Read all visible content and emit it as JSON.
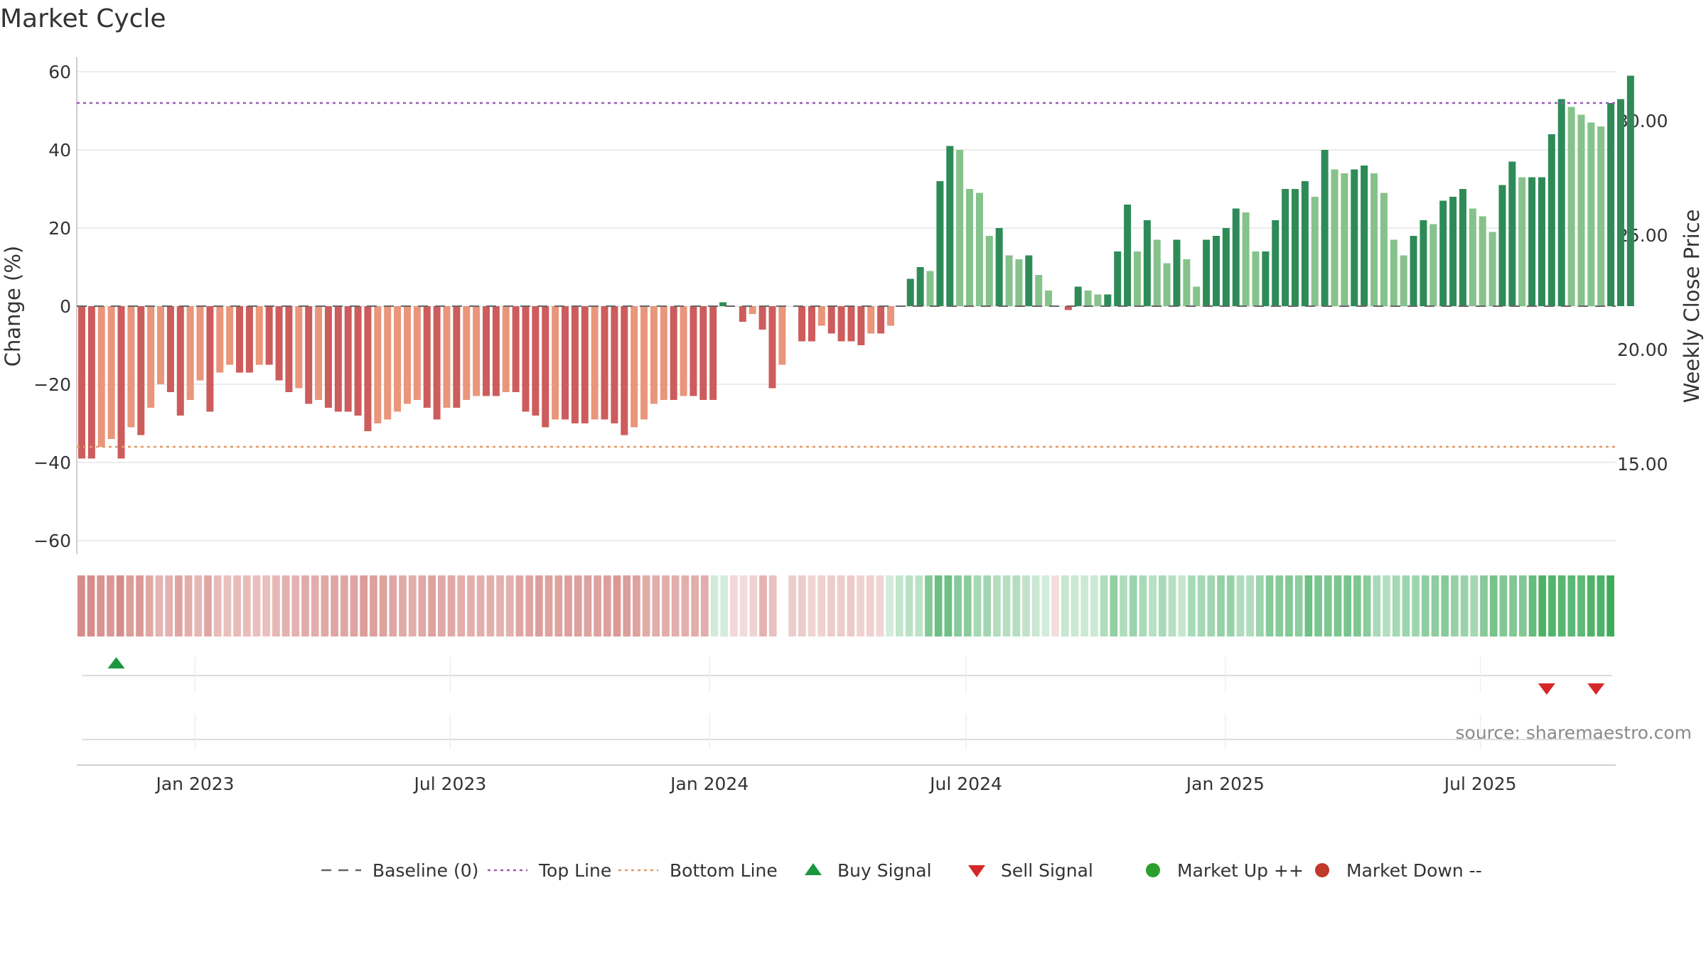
{
  "title": "Market Cycle",
  "source": "source: sharemaestro.com",
  "chart_data": {
    "type": "bar",
    "ylabel": "Change (%)",
    "y2label": "Weekly Close Price",
    "ylim": [
      -60,
      60
    ],
    "yticks": [
      60,
      40,
      20,
      0,
      -20,
      -40,
      -60
    ],
    "yticks_display": [
      "60",
      "40",
      "20",
      "0",
      "−20",
      "−40",
      "−60"
    ],
    "y2lim": [
      11.0,
      33.3
    ],
    "y2ticks": [
      30.0,
      25.0,
      20.0,
      15.0
    ],
    "y2ticks_display": [
      "30.00",
      "25.00",
      "20.00",
      "15.00"
    ],
    "top_line": 52,
    "bottom_line": -36,
    "x_start": "2022-10-09",
    "x_end": "2025-10-05",
    "x_ticks": [
      {
        "date": "2023-01-01",
        "label": "Jan 2023"
      },
      {
        "date": "2023-07-01",
        "label": "Jul 2023"
      },
      {
        "date": "2024-01-01",
        "label": "Jan 2024"
      },
      {
        "date": "2024-07-01",
        "label": "Jul 2024"
      },
      {
        "date": "2025-01-01",
        "label": "Jan 2025"
      },
      {
        "date": "2025-07-01",
        "label": "Jul 2025"
      }
    ],
    "first_week": "2022-10-09",
    "weekly_change": [
      -39,
      -39,
      -36,
      -34,
      -39,
      -31,
      -33,
      -26,
      -20,
      -22,
      -28,
      -24,
      -19,
      -27,
      -17,
      -15,
      -17,
      -17,
      -15,
      -15,
      -19,
      -22,
      -21,
      -25,
      -24,
      -26,
      -27,
      -27,
      -28,
      -32,
      -30,
      -29,
      -27,
      -25,
      -24,
      -26,
      -29,
      -26,
      -26,
      -24,
      -23,
      -23,
      -23,
      -22,
      -22,
      -27,
      -28,
      -31,
      -29,
      -29,
      -30,
      -30,
      -29,
      -29,
      -30,
      -33,
      -31,
      -29,
      -25,
      -24,
      -24,
      -23,
      -23,
      -24,
      -24,
      1,
      0,
      -4,
      -2,
      -6,
      -21,
      -15,
      0,
      -9,
      -9,
      -5,
      -7,
      -9,
      -9,
      -10,
      -7,
      -7,
      -5,
      0,
      7,
      10,
      9,
      32,
      41,
      40,
      30,
      29,
      18,
      20,
      13,
      12,
      13,
      8,
      4,
      0,
      -1,
      5,
      4,
      3,
      3,
      14,
      26,
      14,
      22,
      17,
      11,
      17,
      12,
      5,
      17,
      18,
      20,
      25,
      24,
      14,
      14,
      22,
      30,
      30,
      32,
      28,
      40,
      35,
      34,
      35,
      36,
      34,
      29,
      17,
      13,
      18,
      22,
      21,
      27,
      28,
      30,
      25,
      23,
      19,
      31,
      37,
      33,
      33,
      33,
      44,
      53,
      51,
      49,
      47,
      46,
      52,
      53,
      59
    ],
    "strip_note": "cycle strength heat strip, one cell per week",
    "signals": [
      {
        "type": "buy",
        "date": "2022-11-06"
      },
      {
        "type": "sell",
        "date": "2025-08-17"
      },
      {
        "type": "sell",
        "date": "2025-09-21"
      }
    ],
    "legend": [
      {
        "key": "baseline",
        "label": "Baseline (0)",
        "color": "#666666"
      },
      {
        "key": "top",
        "label": "Top Line",
        "color": "#9b59b6"
      },
      {
        "key": "bottom",
        "label": "Bottom Line",
        "color": "#e59866"
      },
      {
        "key": "buy",
        "label": "Buy Signal",
        "color": "#1a9641"
      },
      {
        "key": "sell",
        "label": "Sell Signal",
        "color": "#d62728"
      },
      {
        "key": "up",
        "label": "Market Up ++",
        "color": "#2ca02c"
      },
      {
        "key": "down",
        "label": "Market Down --",
        "color": "#c0392b"
      }
    ],
    "colors": {
      "dark_green": "#2e8b57",
      "light_green": "#86c28b",
      "dark_red": "#cd5c5c",
      "light_red": "#e9967a",
      "top_line": "#9b59b6",
      "bottom_line": "#e59866"
    }
  }
}
